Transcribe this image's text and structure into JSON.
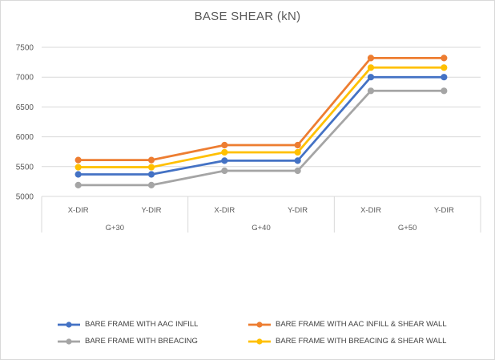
{
  "chart_data": {
    "type": "line",
    "title": "BASE SHEAR (kN)",
    "xlabel": "",
    "ylabel": "",
    "ylim": [
      5000,
      7500
    ],
    "yticks": [
      5000,
      5500,
      6000,
      6500,
      7000,
      7500
    ],
    "ytick_labels": [
      "5000",
      "5500",
      "6000",
      "6500",
      "7000",
      "7500"
    ],
    "grid": true,
    "legend_position": "bottom",
    "categories": [
      "X-DIR",
      "Y-DIR",
      "X-DIR",
      "Y-DIR",
      "X-DIR",
      "Y-DIR"
    ],
    "groups": [
      {
        "label": "G+30",
        "span": 2
      },
      {
        "label": "G+40",
        "span": 2
      },
      {
        "label": "G+50",
        "span": 2
      }
    ],
    "series": [
      {
        "name": "BARE FRAME WITH  AAC INFILL",
        "color": "#4472c4",
        "values": [
          5370,
          5370,
          5600,
          5600,
          7000,
          7000
        ]
      },
      {
        "name": "BARE FRAME WITH AAC INFILL & SHEAR WALL",
        "color": "#ed7d31",
        "values": [
          5610,
          5610,
          5860,
          5860,
          7320,
          7320
        ]
      },
      {
        "name": "BARE FRAME WITH BREACING",
        "color": "#a5a5a5",
        "values": [
          5190,
          5190,
          5430,
          5430,
          6770,
          6770
        ]
      },
      {
        "name": "BARE FRAME WITH  BREACING & SHEAR WALL",
        "color": "#ffc000",
        "values": [
          5490,
          5490,
          5740,
          5740,
          7160,
          7160
        ]
      }
    ]
  }
}
